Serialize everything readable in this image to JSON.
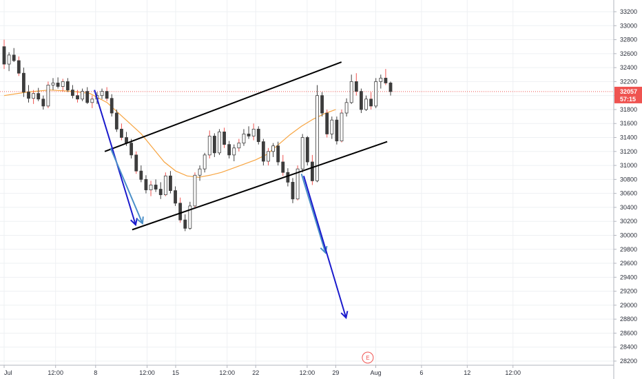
{
  "chart_data": {
    "type": "candlestick",
    "title": "",
    "xlabel": "",
    "ylabel": "",
    "ylim": [
      28150,
      33450
    ],
    "xlim_days": [
      0,
      36.5
    ],
    "y_ticks": [
      33200,
      33000,
      32800,
      32600,
      32400,
      32200,
      32000,
      31800,
      31600,
      31400,
      31200,
      31000,
      30800,
      30600,
      30400,
      30200,
      30000,
      29800,
      29600,
      29400,
      29200,
      29000,
      28800,
      28600,
      28400,
      28200
    ],
    "x_ticks": [
      {
        "label": "Jul",
        "day": 0
      },
      {
        "label": "12:00",
        "day": 4.5
      },
      {
        "label": "8",
        "day": 8
      },
      {
        "label": "12:00",
        "day": 12.5
      },
      {
        "label": "15",
        "day": 15
      },
      {
        "label": "12:00",
        "day": 19.5
      },
      {
        "label": "22",
        "day": 22
      },
      {
        "label": "12:00",
        "day": 26.5
      },
      {
        "label": "29",
        "day": 29
      },
      {
        "label": "Aug",
        "day": 32.5
      },
      {
        "label": "6",
        "day": 36.5
      },
      {
        "label": "12",
        "day": 40.5
      },
      {
        "label": "12:00",
        "day": 44.5
      }
    ],
    "price_label": {
      "value": "32057",
      "countdown": "57:15",
      "price": 32057,
      "color": "#ef5350"
    },
    "last_price_line": 32057,
    "colors": {
      "up": "#ffffff",
      "down": "#3d3d3d",
      "wick": "#3d3d3d",
      "redwick": "#ef5350",
      "ma": "#f7a440",
      "channel": "#000000",
      "arrow_dark": "#1a1acc",
      "arrow_light": "#4a8fc8"
    },
    "series": [
      {
        "name": "price",
        "values": []
      }
    ],
    "candles": [
      [
        32700,
        32800,
        32380,
        32450
      ],
      [
        32450,
        32620,
        32350,
        32580
      ],
      [
        32580,
        32680,
        32480,
        32500
      ],
      [
        32500,
        32560,
        32280,
        32320
      ],
      [
        32320,
        32400,
        31980,
        32050
      ],
      [
        32050,
        32150,
        31900,
        31960
      ],
      [
        31960,
        32080,
        31880,
        32030
      ],
      [
        32030,
        32110,
        31920,
        31950
      ],
      [
        31950,
        32000,
        31800,
        31850
      ],
      [
        31850,
        32200,
        31820,
        32150
      ],
      [
        32150,
        32250,
        32080,
        32180
      ],
      [
        32180,
        32260,
        32100,
        32130
      ],
      [
        32130,
        32240,
        32060,
        32200
      ],
      [
        32200,
        32250,
        32050,
        32080
      ],
      [
        32080,
        32150,
        31960,
        32000
      ],
      [
        32000,
        32080,
        31900,
        31950
      ],
      [
        31950,
        32100,
        31920,
        32060
      ],
      [
        32060,
        32120,
        31880,
        31900
      ],
      [
        31900,
        32000,
        31820,
        31950
      ],
      [
        31950,
        32050,
        31880,
        32000
      ],
      [
        32000,
        32100,
        31950,
        32060
      ],
      [
        32060,
        32120,
        31920,
        31960
      ],
      [
        31960,
        32020,
        31700,
        31750
      ],
      [
        31750,
        31800,
        31480,
        31520
      ],
      [
        31520,
        31600,
        31360,
        31400
      ],
      [
        31400,
        31480,
        31280,
        31320
      ],
      [
        31320,
        31380,
        31100,
        31150
      ],
      [
        31150,
        31200,
        30880,
        30920
      ],
      [
        30920,
        31000,
        30760,
        30800
      ],
      [
        30800,
        30860,
        30600,
        30650
      ],
      [
        30650,
        30780,
        30560,
        30720
      ],
      [
        30720,
        30800,
        30620,
        30660
      ],
      [
        30660,
        30760,
        30520,
        30580
      ],
      [
        30580,
        30900,
        30560,
        30850
      ],
      [
        30850,
        30920,
        30600,
        30640
      ],
      [
        30640,
        30700,
        30420,
        30460
      ],
      [
        30460,
        30540,
        30180,
        30220
      ],
      [
        30220,
        30300,
        30060,
        30100
      ],
      [
        30100,
        30480,
        30080,
        30420
      ],
      [
        30420,
        30900,
        30400,
        30860
      ],
      [
        30860,
        31000,
        30780,
        30950
      ],
      [
        30950,
        31180,
        30900,
        31150
      ],
      [
        31150,
        31500,
        31100,
        31420
      ],
      [
        31420,
        31460,
        31120,
        31180
      ],
      [
        31180,
        31520,
        31150,
        31480
      ],
      [
        31480,
        31540,
        31250,
        31300
      ],
      [
        31300,
        31350,
        31100,
        31150
      ],
      [
        31150,
        31300,
        31060,
        31250
      ],
      [
        31250,
        31380,
        31200,
        31320
      ],
      [
        31320,
        31520,
        31280,
        31450
      ],
      [
        31450,
        31560,
        31380,
        31420
      ],
      [
        31420,
        31600,
        31360,
        31520
      ],
      [
        31520,
        31560,
        31300,
        31340
      ],
      [
        31340,
        31380,
        31000,
        31060
      ],
      [
        31060,
        31250,
        31000,
        31200
      ],
      [
        31200,
        31320,
        31120,
        31280
      ],
      [
        31280,
        31340,
        31000,
        31050
      ],
      [
        31050,
        31150,
        30850,
        30900
      ],
      [
        30900,
        30960,
        30700,
        30760
      ],
      [
        30760,
        30820,
        30460,
        30520
      ],
      [
        30520,
        31000,
        30500,
        30950
      ],
      [
        30950,
        31450,
        30900,
        31400
      ],
      [
        31400,
        31420,
        31000,
        31050
      ],
      [
        31050,
        31150,
        30720,
        30780
      ],
      [
        30780,
        32150,
        30760,
        32000
      ],
      [
        32000,
        32050,
        31700,
        31750
      ],
      [
        31750,
        31800,
        31400,
        31450
      ],
      [
        31450,
        31700,
        31380,
        31650
      ],
      [
        31650,
        31700,
        31300,
        31350
      ],
      [
        31350,
        31800,
        31330,
        31750
      ],
      [
        31750,
        31960,
        31700,
        31900
      ],
      [
        31900,
        32300,
        31880,
        32200
      ],
      [
        32200,
        32320,
        32000,
        32060
      ],
      [
        32060,
        32100,
        31750,
        31800
      ],
      [
        31800,
        32000,
        31780,
        31950
      ],
      [
        31950,
        32050,
        31800,
        31850
      ],
      [
        31850,
        32250,
        31820,
        32200
      ],
      [
        32200,
        32300,
        32100,
        32250
      ],
      [
        32250,
        32380,
        32150,
        32180
      ],
      [
        32180,
        32200,
        32000,
        32057
      ]
    ],
    "moving_average": [
      [
        0,
        32000
      ],
      [
        2,
        32050
      ],
      [
        4,
        32080
      ],
      [
        6,
        32060
      ],
      [
        7.5,
        32030
      ],
      [
        9,
        31900
      ],
      [
        10,
        31750
      ],
      [
        11,
        31600
      ],
      [
        12,
        31450
      ],
      [
        13,
        31250
      ],
      [
        14,
        31050
      ],
      [
        15,
        30920
      ],
      [
        16,
        30850
      ],
      [
        17,
        30830
      ],
      [
        18,
        30860
      ],
      [
        19,
        30900
      ],
      [
        20,
        30960
      ],
      [
        21,
        31020
      ],
      [
        22,
        31080
      ],
      [
        23,
        31160
      ],
      [
        24,
        31300
      ],
      [
        25,
        31440
      ],
      [
        26,
        31560
      ],
      [
        27,
        31660
      ],
      [
        28,
        31740
      ],
      [
        29,
        31800
      ]
    ],
    "channel_lines": [
      {
        "from": [
          8.8,
          31200
        ],
        "to": [
          29.5,
          32480
        ]
      },
      {
        "from": [
          11.2,
          30080
        ],
        "to": [
          33.5,
          31340
        ]
      }
    ],
    "arrows": [
      {
        "from": [
          7.9,
          32080
        ],
        "to": [
          11.5,
          30150
        ],
        "tone": "dark"
      },
      {
        "from": [
          9.3,
          31250
        ],
        "to": [
          12.1,
          30170
        ],
        "tone": "light"
      },
      {
        "from": [
          26,
          30880
        ],
        "to": [
          28.1,
          29750
        ],
        "tone": "light"
      },
      {
        "from": [
          26.2,
          30850
        ],
        "to": [
          29.9,
          28820
        ],
        "tone": "dark"
      }
    ],
    "event_marker": {
      "label": "E",
      "day": 31.8
    }
  }
}
